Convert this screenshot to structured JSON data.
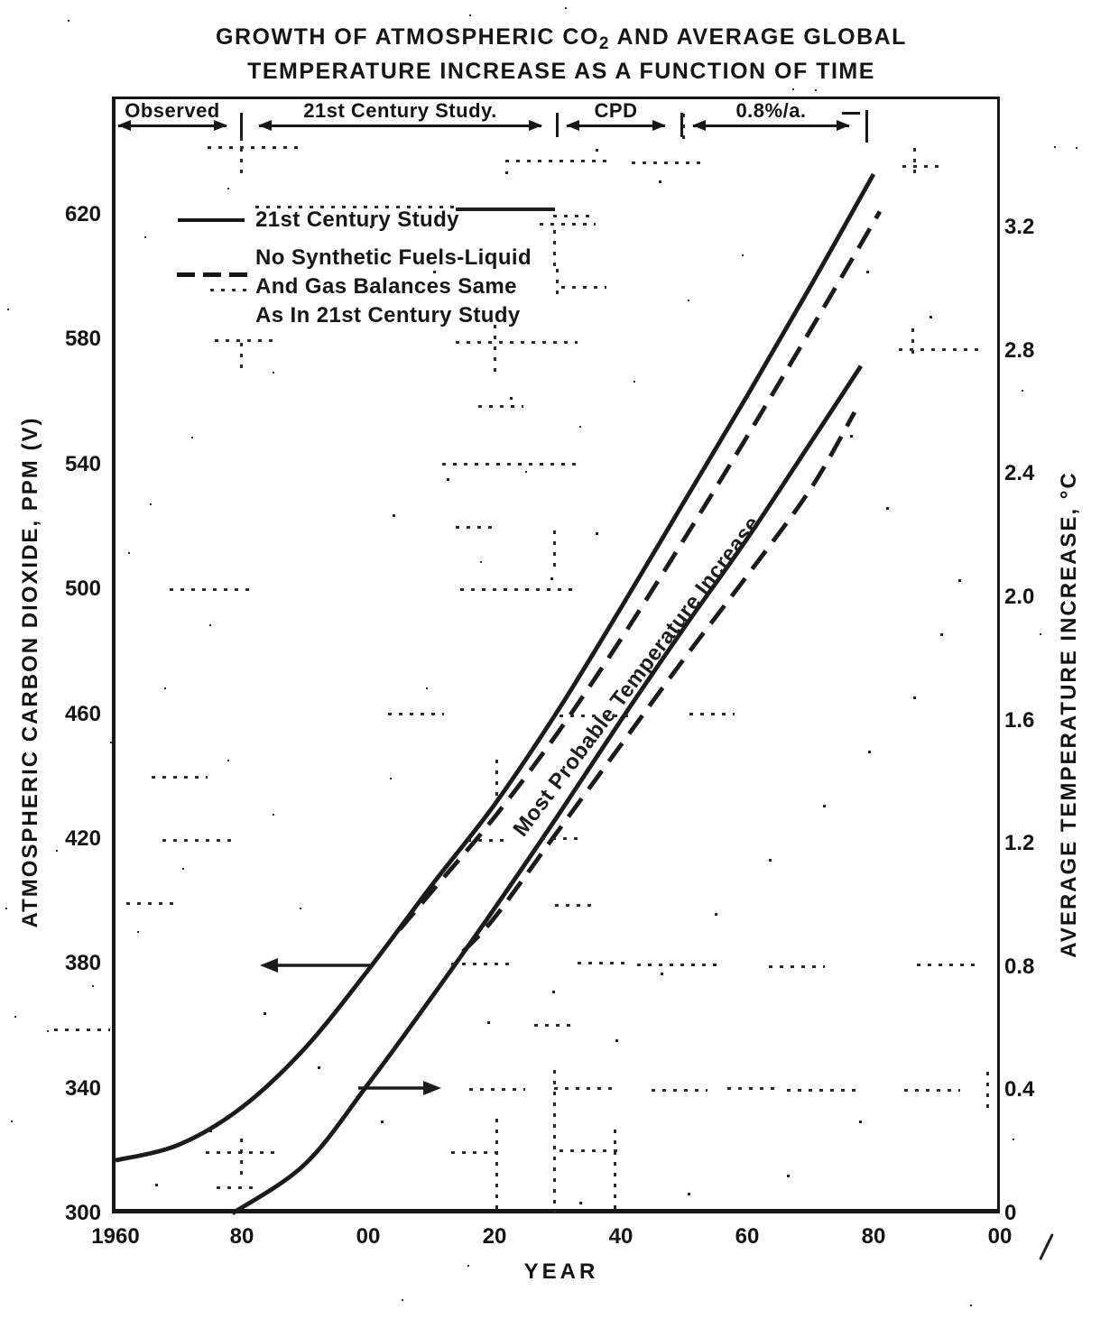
{
  "title": {
    "line1_pre": "GROWTH OF ATMOSPHERIC CO",
    "line1_sub": "2",
    "line1_post": " AND AVERAGE GLOBAL",
    "line2": "TEMPERATURE INCREASE AS A FUNCTION OF TIME"
  },
  "periods": [
    {
      "label": "Observed"
    },
    {
      "label": "21st Century Study."
    },
    {
      "label": "CPD"
    },
    {
      "label": "0.8%/a."
    }
  ],
  "legend": {
    "items": [
      {
        "style": "solid",
        "label": "21st Century Study"
      },
      {
        "style": "dashed",
        "lines": [
          "No Synthetic Fuels-Liquid",
          "And Gas Balances Same",
          "As In 21st Century Study"
        ]
      }
    ]
  },
  "chart_data": {
    "type": "line",
    "title": "Growth of atmospheric CO2 and average global temperature increase as a function of time",
    "grid": "dotted (degraded scan)",
    "x_axis": {
      "title": "YEAR",
      "range": [
        1960,
        2100
      ],
      "tick_values": [
        1960,
        1980,
        2000,
        2020,
        2040,
        2060,
        2080,
        2100
      ],
      "tick_labels": [
        "1960",
        "80",
        "00",
        "20",
        "40",
        "60",
        "80",
        "00"
      ]
    },
    "left_axis": {
      "title": "ATMOSPHERIC CARBON DIOXIDE, PPM (V)",
      "range": [
        300,
        620
      ],
      "tick_values": [
        300,
        340,
        380,
        420,
        460,
        500,
        540,
        580,
        620
      ],
      "tick_labels": [
        "300",
        "340",
        "380",
        "420",
        "460",
        "500",
        "540",
        "580",
        "620"
      ]
    },
    "right_axis": {
      "title": "AVERAGE TEMPERATURE INCREASE, °C",
      "range": [
        0,
        3.2
      ],
      "tick_values": [
        0,
        0.4,
        0.8,
        1.2,
        1.6,
        2.0,
        2.4,
        2.8,
        3.2
      ],
      "tick_labels": [
        "0",
        "0.4",
        "0.8",
        "1.2",
        "1.6",
        "2.0",
        "2.4",
        "2.8",
        "3.2"
      ]
    },
    "series": [
      {
        "name": "21st Century Study — CO2",
        "axis": "left",
        "line": "solid",
        "points": [
          [
            1960,
            317
          ],
          [
            1970,
            322
          ],
          [
            1980,
            334
          ],
          [
            1990,
            353
          ],
          [
            2000,
            378
          ],
          [
            2010,
            405
          ],
          [
            2020,
            431
          ],
          [
            2030,
            461
          ],
          [
            2040,
            494
          ],
          [
            2050,
            528
          ],
          [
            2060,
            562
          ],
          [
            2070,
            597
          ],
          [
            2080,
            633
          ]
        ]
      },
      {
        "name": "No Synthetic Fuels — CO2",
        "axis": "left",
        "line": "dashed",
        "points": [
          [
            2005,
            391
          ],
          [
            2010,
            403
          ],
          [
            2020,
            427
          ],
          [
            2030,
            454
          ],
          [
            2040,
            484
          ],
          [
            2050,
            516
          ],
          [
            2060,
            549
          ],
          [
            2070,
            583
          ],
          [
            2081,
            621
          ]
        ]
      },
      {
        "name": "21st Century Study — Temperature",
        "axis": "right",
        "line": "solid",
        "points": [
          [
            1978.5,
            0
          ],
          [
            1990,
            0.16
          ],
          [
            2000,
            0.42
          ],
          [
            2010,
            0.7
          ],
          [
            2020,
            0.99
          ],
          [
            2030,
            1.29
          ],
          [
            2040,
            1.6
          ],
          [
            2050,
            1.9
          ],
          [
            2060,
            2.19
          ],
          [
            2070,
            2.5
          ],
          [
            2078,
            2.75
          ]
        ]
      },
      {
        "name": "No Synthetic Fuels — Temperature",
        "axis": "right",
        "line": "dashed",
        "points": [
          [
            2015,
            0.85
          ],
          [
            2020,
            0.96
          ],
          [
            2030,
            1.24
          ],
          [
            2040,
            1.52
          ],
          [
            2050,
            1.8
          ],
          [
            2060,
            2.07
          ],
          [
            2070,
            2.35
          ],
          [
            2077,
            2.6
          ]
        ]
      }
    ],
    "annotations": {
      "curve_label": "Most Probable Temperature Increase",
      "pointer_arrows": [
        "CO2 curve points to left axis at 380 ppm",
        "temperature curve points to right axis at 0.4 °C"
      ]
    }
  }
}
